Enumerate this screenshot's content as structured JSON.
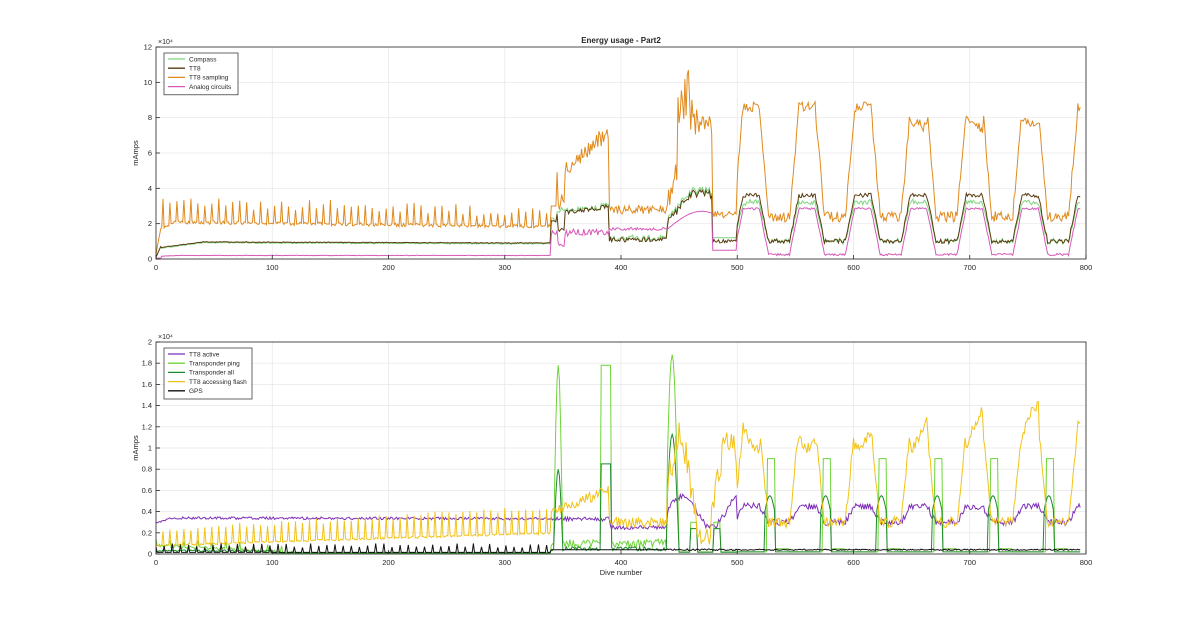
{
  "chart_data": [
    {
      "type": "line",
      "title": "Energy usage - Part2",
      "xlabel": "",
      "ylabel": "mAmps",
      "y_exponent_label": "×10⁴",
      "xlim": [
        0,
        800
      ],
      "ylim": [
        0,
        12
      ],
      "x_ticks": [
        "0",
        "100",
        "200",
        "300",
        "400",
        "500",
        "600",
        "700",
        "800"
      ],
      "y_ticks": [
        "0",
        "2",
        "4",
        "6",
        "8",
        "10",
        "12"
      ],
      "grid": true,
      "legend_position": "top-left",
      "series": [
        {
          "name": "Compass",
          "color": "#7fd67f"
        },
        {
          "name": "TT8",
          "color": "#5a3a10"
        },
        {
          "name": "TT8 sampling",
          "color": "#e08a1e"
        },
        {
          "name": "Analog circuits",
          "color": "#d65ab9"
        }
      ]
    },
    {
      "type": "line",
      "title": "",
      "xlabel": "Dive number",
      "ylabel": "mAmps",
      "y_exponent_label": "×10⁴",
      "xlim": [
        0,
        800
      ],
      "ylim": [
        0,
        2
      ],
      "x_ticks": [
        "0",
        "100",
        "200",
        "300",
        "400",
        "500",
        "600",
        "700",
        "800"
      ],
      "y_ticks": [
        "0",
        "0.2",
        "0.4",
        "0.6",
        "0.8",
        "1",
        "1.2",
        "1.4",
        "1.6",
        "1.8",
        "2"
      ],
      "grid": true,
      "legend_position": "top-left",
      "series": [
        {
          "name": "TT8 active",
          "color": "#7e2fb8"
        },
        {
          "name": "Transponder ping",
          "color": "#6fd43a"
        },
        {
          "name": "Transponder all",
          "color": "#1f8a2c"
        },
        {
          "name": "TT8 accessing flash",
          "color": "#f2c21a"
        },
        {
          "name": "GPS",
          "color": "#111111"
        }
      ]
    }
  ]
}
